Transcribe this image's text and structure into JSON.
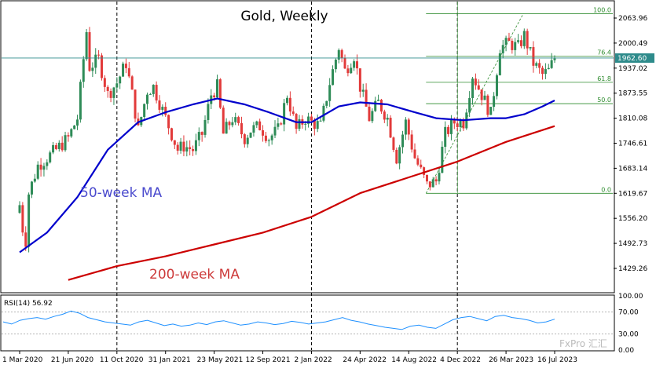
{
  "chart_data": [
    {
      "type": "candlestick",
      "title": "Gold, Weekly",
      "ylim": [
        1400,
        2100
      ],
      "y_ticks": [
        2063.96,
        2000.49,
        1937.02,
        1873.55,
        1810.08,
        1746.61,
        1683.14,
        1619.67,
        1556.2,
        1492.73,
        1429.26
      ],
      "y_tick_labels": [
        "2063.96",
        "2000.49",
        "1937.02",
        "1873.55",
        "1810.08",
        "1746.61",
        "1683.14",
        "1619.67",
        "1556.20",
        "1492.73",
        "1429.26"
      ],
      "x_tick_labels": [
        "1 Mar 2020",
        "21 Jun 2020",
        "11 Oct 2020",
        "31 Jan 2021",
        "23 May 2021",
        "12 Sep 2021",
        "2 Jan 2022",
        "24 Apr 2022",
        "14 Aug 2022",
        "4 Dec 2022",
        "26 Mar 2023",
        "16 Jul 2023"
      ],
      "current_price": 1962.6,
      "current_price_label": "1962.60",
      "close_path": [
        [
          "1 Mar 2020",
          1590
        ],
        [
          "8 Mar 2020",
          1530
        ],
        [
          "15 Mar 2020",
          1500
        ],
        [
          "22 Mar 2020",
          1620
        ],
        [
          "12 Apr 2020",
          1690
        ],
        [
          "3 May 2020",
          1710
        ],
        [
          "24 May 2020",
          1730
        ],
        [
          "21 Jun 2020",
          1760
        ],
        [
          "12 Jul 2020",
          1810
        ],
        [
          "26 Jul 2020",
          1960
        ],
        [
          "2 Aug 2020",
          2030
        ],
        [
          "9 Aug 2020",
          1940
        ],
        [
          "30 Aug 2020",
          1960
        ],
        [
          "20 Sep 2020",
          1870
        ],
        [
          "11 Oct 2020",
          1900
        ],
        [
          "1 Nov 2020",
          1950
        ],
        [
          "15 Nov 2020",
          1870
        ],
        [
          "29 Nov 2020",
          1780
        ],
        [
          "20 Dec 2020",
          1880
        ],
        [
          "3 Jan 2021",
          1890
        ],
        [
          "31 Jan 2021",
          1810
        ],
        [
          "28 Feb 2021",
          1730
        ],
        [
          "14 Mar 2021",
          1740
        ],
        [
          "4 Apr 2021",
          1730
        ],
        [
          "25 Apr 2021",
          1770
        ],
        [
          "16 May 2021",
          1870
        ],
        [
          "30 May 2021",
          1890
        ],
        [
          "13 Jun 2021",
          1770
        ],
        [
          "4 Jul 2021",
          1810
        ],
        [
          "1 Aug 2021",
          1760
        ],
        [
          "15 Aug 2021",
          1780
        ],
        [
          "5 Sep 2021",
          1790
        ],
        [
          "26 Sep 2021",
          1760
        ],
        [
          "17 Oct 2021",
          1780
        ],
        [
          "7 Nov 2021",
          1870
        ],
        [
          "28 Nov 2021",
          1780
        ],
        [
          "19 Dec 2021",
          1810
        ],
        [
          "2 Jan 2022",
          1800
        ],
        [
          "23 Jan 2022",
          1790
        ],
        [
          "13 Feb 2022",
          1900
        ],
        [
          "6 Mar 2022",
          1990
        ],
        [
          "20 Mar 2022",
          1930
        ],
        [
          "10 Apr 2022",
          1970
        ],
        [
          "24 Apr 2022",
          1890
        ],
        [
          "15 May 2022",
          1810
        ],
        [
          "5 Jun 2022",
          1850
        ],
        [
          "26 Jun 2022",
          1810
        ],
        [
          "17 Jul 2022",
          1710
        ],
        [
          "7 Aug 2022",
          1800
        ],
        [
          "28 Aug 2022",
          1710
        ],
        [
          "25 Sep 2022",
          1640
        ],
        [
          "16 Oct 2022",
          1650
        ],
        [
          "6 Nov 2022",
          1770
        ],
        [
          "27 Nov 2022",
          1800
        ],
        [
          "18 Dec 2022",
          1800
        ],
        [
          "8 Jan 2023",
          1920
        ],
        [
          "29 Jan 2023",
          1870
        ],
        [
          "19 Feb 2023",
          1820
        ],
        [
          "12 Mar 2023",
          1990
        ],
        [
          "2 Apr 2023",
          2000
        ],
        [
          "23 Apr 2023",
          1990
        ],
        [
          "7 May 2023",
          2020
        ],
        [
          "28 May 2023",
          1950
        ],
        [
          "18 Jun 2023",
          1920
        ],
        [
          "2 Jul 2023",
          1930
        ],
        [
          "16 Jul 2023",
          1962.6
        ]
      ],
      "series": [
        {
          "name": "50-week MA",
          "color": "#0000cc",
          "points": [
            [
              "1 Mar 2020",
              1470
            ],
            [
              "3 May 2020",
              1520
            ],
            [
              "12 Jul 2020",
              1610
            ],
            [
              "20 Sep 2020",
              1730
            ],
            [
              "29 Nov 2020",
              1800
            ],
            [
              "31 Jan 2021",
              1825
            ],
            [
              "4 Apr 2021",
              1845
            ],
            [
              "30 May 2021",
              1860
            ],
            [
              "1 Aug 2021",
              1845
            ],
            [
              "26 Sep 2021",
              1825
            ],
            [
              "28 Nov 2021",
              1800
            ],
            [
              "2 Jan 2022",
              1800
            ],
            [
              "6 Mar 2022",
              1840
            ],
            [
              "24 Apr 2022",
              1850
            ],
            [
              "26 Jun 2022",
              1845
            ],
            [
              "28 Aug 2022",
              1825
            ],
            [
              "16 Oct 2022",
              1810
            ],
            [
              "18 Dec 2022",
              1805
            ],
            [
              "19 Feb 2023",
              1810
            ],
            [
              "26 Mar 2023",
              1810
            ],
            [
              "7 May 2023",
              1820
            ],
            [
              "18 Jun 2023",
              1840
            ],
            [
              "16 Jul 2023",
              1855
            ]
          ]
        },
        {
          "name": "200-week MA",
          "color": "#cc0000",
          "points": [
            [
              "21 Jun 2020",
              1400
            ],
            [
              "11 Oct 2020",
              1435
            ],
            [
              "31 Jan 2021",
              1460
            ],
            [
              "23 May 2021",
              1490
            ],
            [
              "12 Sep 2021",
              1520
            ],
            [
              "2 Jan 2022",
              1560
            ],
            [
              "24 Apr 2022",
              1620
            ],
            [
              "14 Aug 2022",
              1660
            ],
            [
              "4 Dec 2022",
              1700
            ],
            [
              "26 Mar 2023",
              1750
            ],
            [
              "16 Jul 2023",
              1790
            ]
          ]
        }
      ],
      "annotations": [
        {
          "text": "50-week MA",
          "color": "#4a4acd"
        },
        {
          "text": "200-week MA",
          "color": "#cd3a3a"
        }
      ],
      "fibonacci": {
        "color": "#2e8b2e",
        "low": 1619.67,
        "high": 2075,
        "levels": [
          {
            "label": "100.0",
            "value": 2075
          },
          {
            "label": "76.4",
            "value": 1967
          },
          {
            "label": "61.8",
            "value": 1901
          },
          {
            "label": "50.0",
            "value": 1847
          },
          {
            "label": "0.0",
            "value": 1619.67
          }
        ]
      }
    },
    {
      "type": "line",
      "title": "RSI(14) 56.92",
      "ylim": [
        0,
        100
      ],
      "y_tick_labels": [
        "100.00",
        "70.00",
        "30.00",
        "0.00"
      ],
      "levels": [
        70,
        30
      ],
      "series": [
        {
          "color": "#1e90ff",
          "values": [
            52,
            48,
            55,
            58,
            60,
            57,
            62,
            66,
            72,
            68,
            60,
            56,
            52,
            50,
            48,
            46,
            52,
            55,
            50,
            45,
            48,
            44,
            46,
            50,
            47,
            52,
            54,
            50,
            46,
            48,
            52,
            50,
            47,
            49,
            53,
            51,
            48,
            50,
            52,
            56,
            60,
            55,
            52,
            48,
            45,
            42,
            40,
            38,
            44,
            46,
            42,
            40,
            48,
            56,
            60,
            62,
            58,
            54,
            62,
            64,
            60,
            58,
            55,
            50,
            52,
            56.92
          ]
        }
      ]
    }
  ],
  "watermark": "FxPro 汇汇"
}
